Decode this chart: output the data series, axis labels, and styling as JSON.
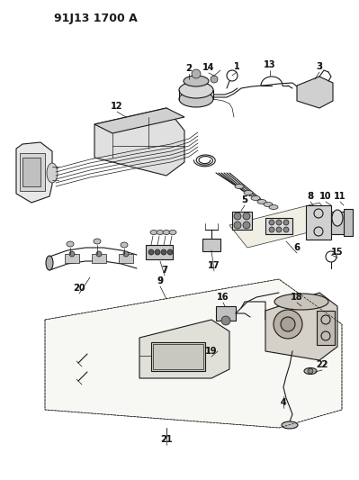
{
  "title": "91J13 1700 A",
  "bg": "#ffffff",
  "lc": "#1a1a1a",
  "fig_w": 3.99,
  "fig_h": 5.33,
  "dpi": 100
}
